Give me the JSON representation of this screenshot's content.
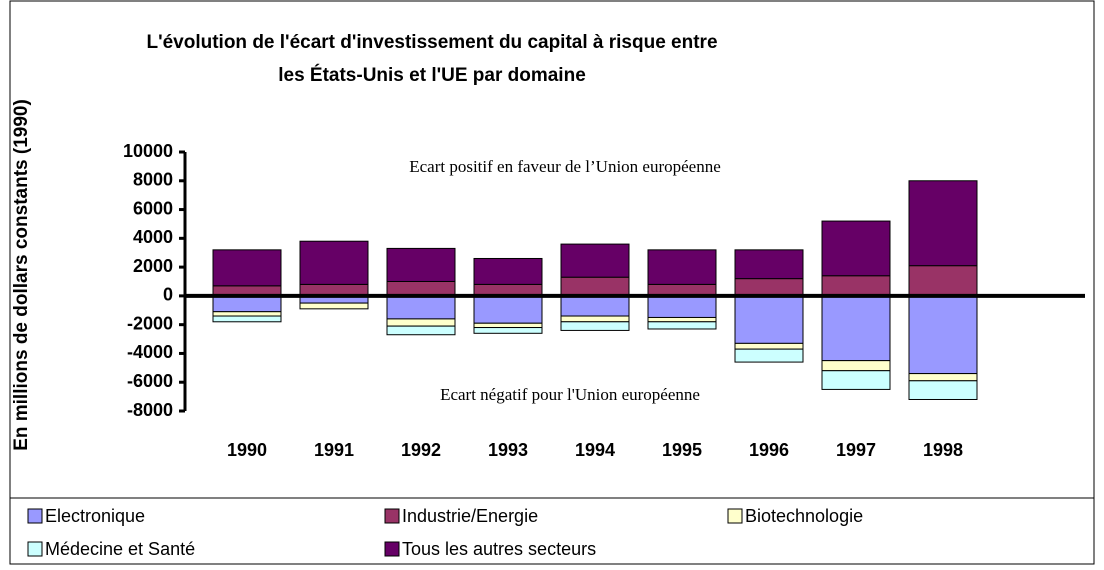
{
  "chart_data": {
    "type": "stacked_bar",
    "title": [
      "L'évolution de l'écart d'investissement du capital à risque entre",
      "les États-Unis et l'UE par domaine"
    ],
    "y_label": "En millions de dollars constants (1990)",
    "annotations": [
      "Ecart positif en faveur de l’Union européenne",
      "Ecart négatif pour l'Union européenne"
    ],
    "categories": [
      "1990",
      "1991",
      "1992",
      "1993",
      "1994",
      "1995",
      "1996",
      "1997",
      "1998"
    ],
    "series": [
      {
        "name": "Electronique",
        "color": "#9999ff",
        "values": [
          -1100,
          -500,
          -1600,
          -1900,
          -1400,
          -1500,
          -3300,
          -4500,
          -5400
        ]
      },
      {
        "name": "Industrie/Energie",
        "color": "#993366",
        "values": [
          700,
          800,
          1000,
          800,
          1300,
          800,
          1200,
          1400,
          2100
        ]
      },
      {
        "name": "Biotechnologie",
        "color": "#ffffcc",
        "values": [
          -300,
          -400,
          -500,
          -300,
          -400,
          -300,
          -400,
          -700,
          -500
        ]
      },
      {
        "name": "Médecine et Santé",
        "color": "#ccffff",
        "values": [
          -400,
          0,
          -600,
          -400,
          -600,
          -500,
          -900,
          -1300,
          -1300
        ]
      },
      {
        "name": "Tous les autres secteurs",
        "color": "#660066",
        "values": [
          2500,
          3000,
          2300,
          1800,
          2300,
          2400,
          2000,
          3800,
          5900
        ]
      }
    ],
    "ylim": [
      -8000,
      10000
    ],
    "yticks": [
      10000,
      8000,
      6000,
      4000,
      2000,
      0,
      -2000,
      -4000,
      -6000,
      -8000
    ],
    "grid": false
  }
}
